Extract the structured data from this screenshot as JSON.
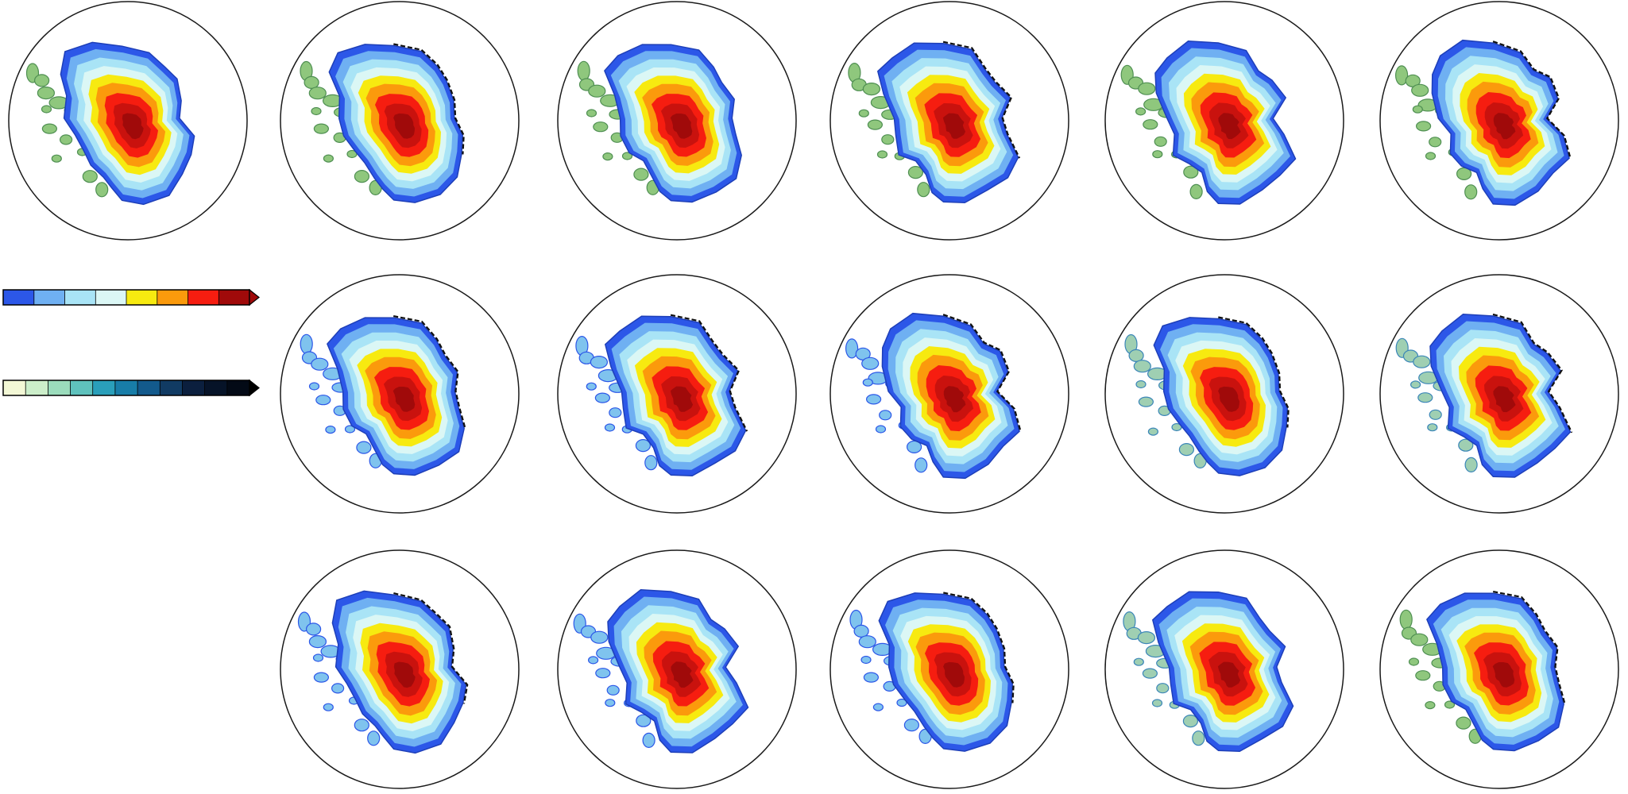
{
  "figure": {
    "rows": 3,
    "cols": 6,
    "panels": [
      {
        "row": 0,
        "col": 0,
        "variant": 0,
        "fringe": "green"
      },
      {
        "row": 0,
        "col": 1,
        "variant": 1,
        "fringe": "green"
      },
      {
        "row": 0,
        "col": 2,
        "variant": 2,
        "fringe": "green"
      },
      {
        "row": 0,
        "col": 3,
        "variant": 3,
        "fringe": "green"
      },
      {
        "row": 0,
        "col": 4,
        "variant": 4,
        "fringe": "green"
      },
      {
        "row": 0,
        "col": 5,
        "variant": 5,
        "fringe": "green"
      },
      {
        "row": 1,
        "col": 1,
        "variant": 2,
        "fringe": "blue"
      },
      {
        "row": 1,
        "col": 2,
        "variant": 3,
        "fringe": "blue"
      },
      {
        "row": 1,
        "col": 3,
        "variant": 5,
        "fringe": "blue"
      },
      {
        "row": 1,
        "col": 4,
        "variant": 1,
        "fringe": "mixed"
      },
      {
        "row": 1,
        "col": 5,
        "variant": 4,
        "fringe": "mixed"
      },
      {
        "row": 2,
        "col": 1,
        "variant": 0,
        "fringe": "blue"
      },
      {
        "row": 2,
        "col": 2,
        "variant": 4,
        "fringe": "blue"
      },
      {
        "row": 2,
        "col": 3,
        "variant": 1,
        "fringe": "blue"
      },
      {
        "row": 2,
        "col": 4,
        "variant": 3,
        "fringe": "mixed"
      },
      {
        "row": 2,
        "col": 5,
        "variant": 2,
        "fringe": "green"
      }
    ],
    "colorbars": [
      {
        "name": "warm-colorbar",
        "colors": [
          "#2c57e8",
          "#6fb0f2",
          "#a9e4f6",
          "#dbf7f5",
          "#f7ea10",
          "#fb9a0c",
          "#f61d10",
          "#a00a0a"
        ],
        "arrow_color": "#a00a0a"
      },
      {
        "name": "dark-colorbar",
        "colors": [
          "#f3f8d6",
          "#cceeca",
          "#9bdcbc",
          "#5fc2bd",
          "#2a9fba",
          "#187da8",
          "#135a8c",
          "#113b63",
          "#0b1f3e",
          "#061328",
          "#030a16"
        ],
        "arrow_color": "#000000"
      }
    ]
  }
}
